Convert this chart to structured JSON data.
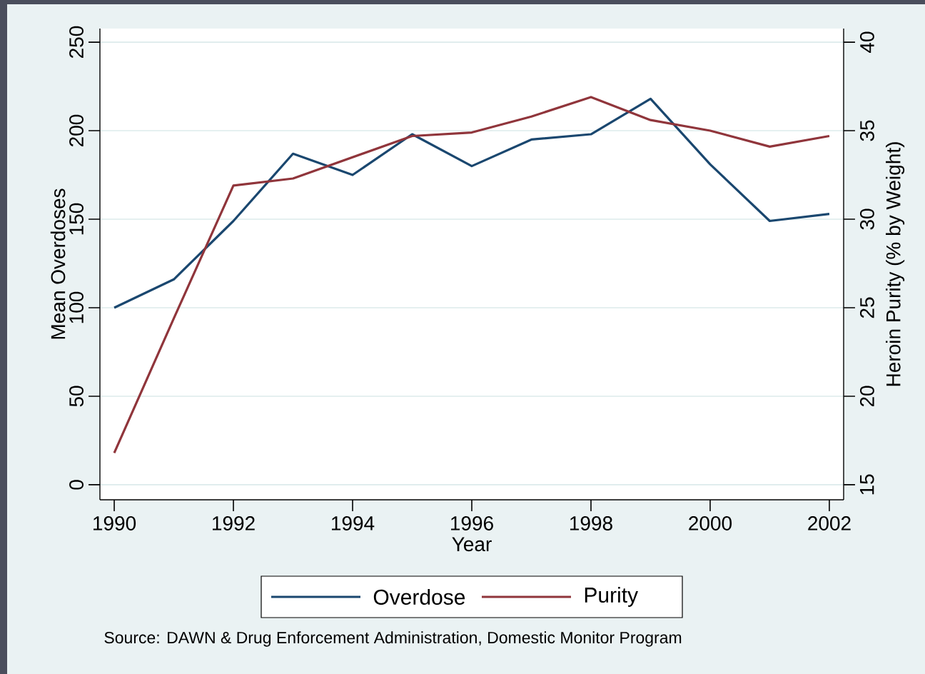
{
  "chart_data": {
    "type": "line",
    "xlabel": "Year",
    "ylabel": "Mean Overdoses",
    "y2label": "Heroin Purity (% by Weight)",
    "x": [
      1990,
      1991,
      1992,
      1993,
      1994,
      1995,
      1996,
      1997,
      1998,
      1999,
      2000,
      2001,
      2002
    ],
    "series": [
      {
        "name": "Overdose",
        "color": "#1a476f",
        "values": [
          100,
          116,
          149,
          187,
          175,
          198,
          180,
          195,
          198,
          218,
          181,
          149,
          153
        ]
      },
      {
        "name": "Purity",
        "color": "#90353b",
        "axis": "y2",
        "values": [
          16.8,
          24.4,
          31.9,
          32.3,
          33.5,
          34.7,
          34.9,
          35.8,
          36.9,
          35.6,
          35.0,
          34.1,
          34.7
        ]
      }
    ],
    "xlim": [
      1989.76,
      2002.24
    ],
    "xticks": [
      1990,
      1992,
      1994,
      1996,
      1998,
      2000,
      2002
    ],
    "ylim": [
      -8.5,
      257.7
    ],
    "yticks": [
      0,
      50,
      100,
      150,
      200,
      250
    ],
    "y2lim": [
      14.15,
      40.77
    ],
    "y2ticks": [
      15,
      20,
      25,
      30,
      35,
      40
    ],
    "grid": "y",
    "legend": "bottom",
    "marker": "none",
    "line_style": "solid",
    "annotations": [
      "Source: DAWN & Drug Enforcement Administration, Domestic Monitor Program"
    ]
  }
}
